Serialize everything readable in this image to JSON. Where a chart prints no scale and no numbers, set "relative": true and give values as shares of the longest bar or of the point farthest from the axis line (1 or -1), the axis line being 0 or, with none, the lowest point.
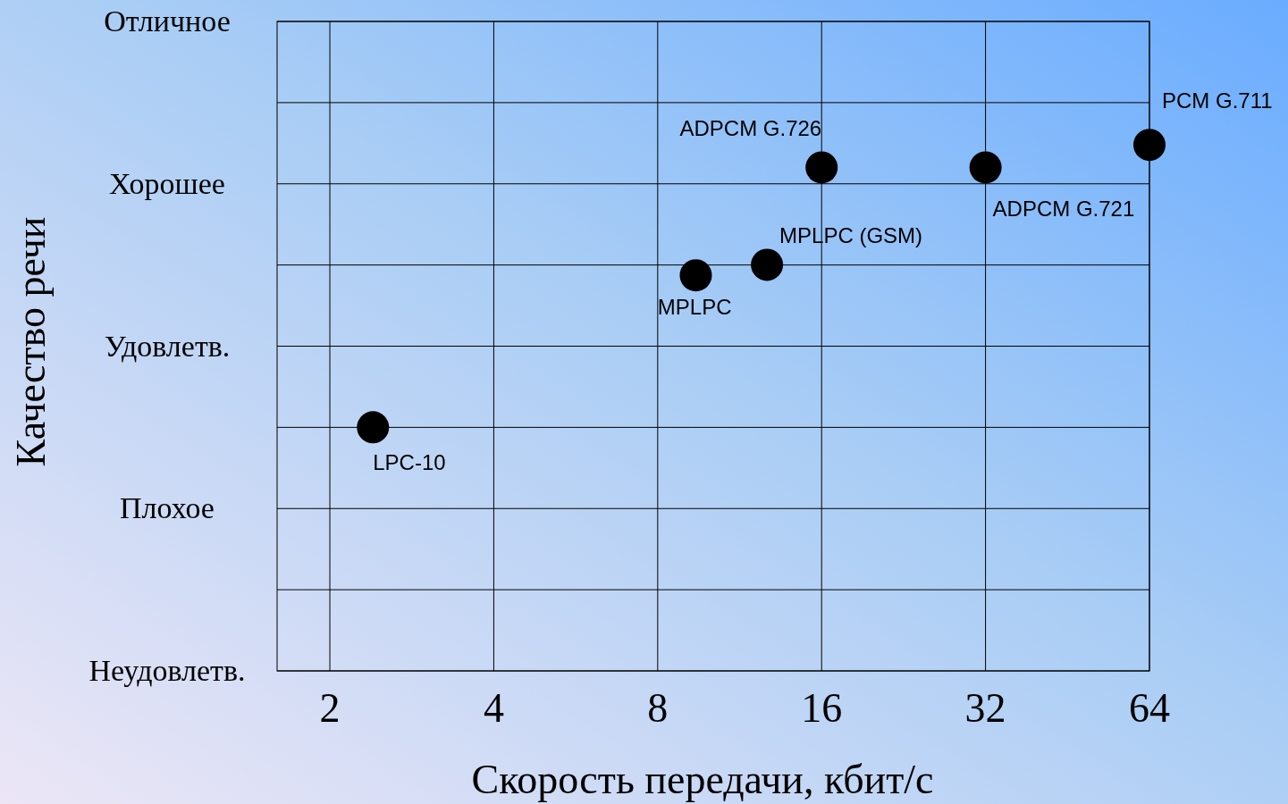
{
  "chart_data": {
    "type": "scatter",
    "xlabel": "Скорость передачи, кбит/с",
    "log": "x",
    "xlim": [
      1.6,
      64
    ],
    "xticks": [
      2,
      4,
      8,
      16,
      32,
      64
    ],
    "relative": true,
    "grid": true,
    "marker": "circle",
    "series": [
      {
        "color": "#000000",
        "x": [
          2.4,
          9.4,
          12.7,
          16,
          32,
          64
        ],
        "values": [
          0.463,
          0.752,
          0.772,
          0.957,
          0.957,
          1
        ]
      }
    ],
    "annotations": [
      "Отличное",
      "Хорошее",
      "Удовлетв.",
      "Плохое",
      "Неудовлетв.",
      "Качество речи",
      {
        "text": "LPC-10",
        "x": 2.4,
        "y": 0.463
      },
      {
        "text": "MPLPC",
        "x": 9.4,
        "y": 0.752
      },
      {
        "text": "MPLPC (GSM)",
        "x": 12.7,
        "y": 0.772
      },
      {
        "text": "ADPCM G.726",
        "x": 16,
        "y": 0.957
      },
      {
        "text": "ADPCM G.721",
        "x": 32,
        "y": 0.957
      },
      {
        "text": "PCM G.711",
        "x": 64,
        "y": 1
      }
    ]
  }
}
